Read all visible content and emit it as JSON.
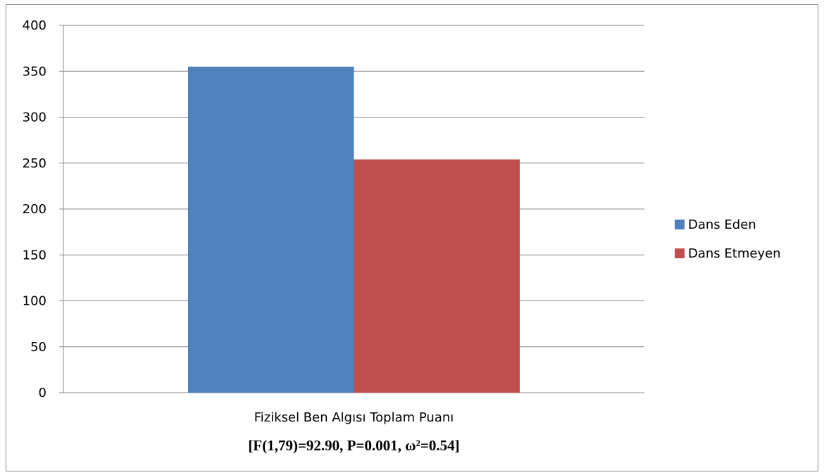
{
  "chart_data": {
    "type": "bar",
    "categories": [
      "Fiziksel Ben Algısı Toplam Puanı"
    ],
    "series": [
      {
        "name": "Dans Eden",
        "values": [
          355
        ]
      },
      {
        "name": "Dans Etmeyen",
        "values": [
          254
        ]
      }
    ],
    "annotation": "[F(1,79)=92.90, P=0.001, ω²=0.54]",
    "ylim": [
      0,
      400
    ],
    "yticks": [
      0,
      50,
      100,
      150,
      200,
      250,
      300,
      350,
      400
    ],
    "grid": true,
    "legend_position": "right",
    "colors": [
      "#4f81bd",
      "#c0504d"
    ]
  }
}
